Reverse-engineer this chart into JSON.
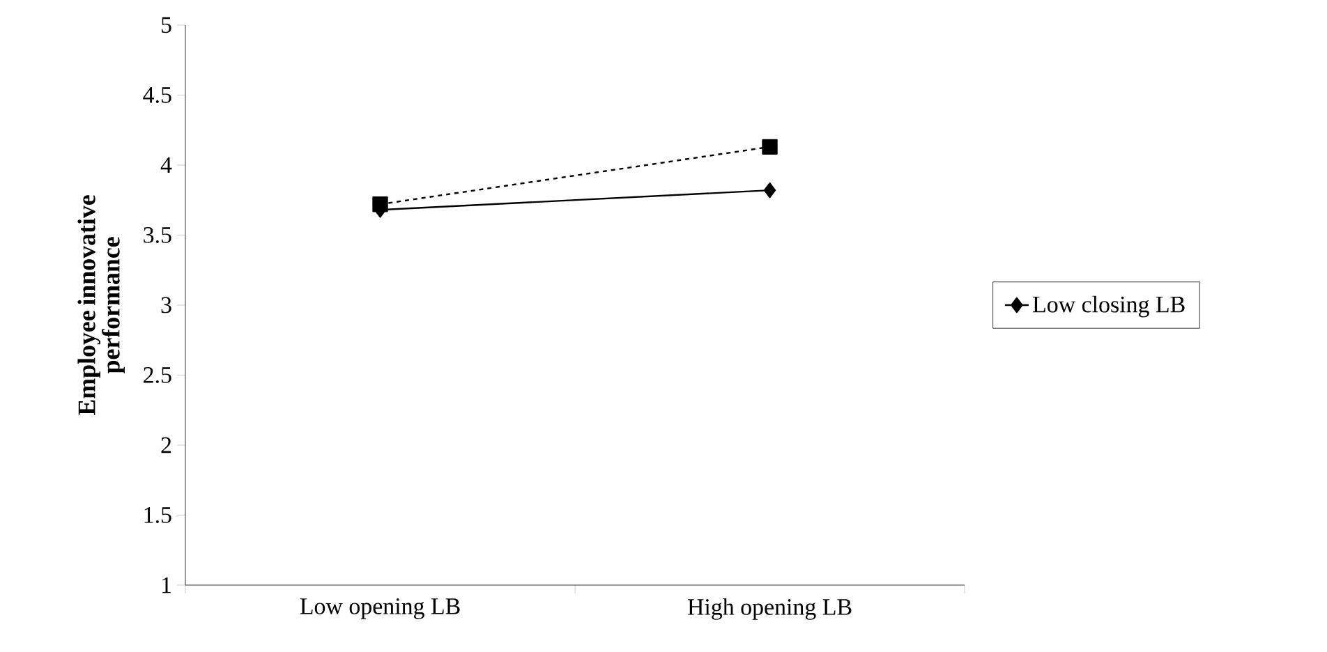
{
  "chart_data": {
    "type": "line",
    "ylabel": "Employee innovative performance",
    "categories": [
      "Low opening LB",
      "High opening LB"
    ],
    "series": [
      {
        "name": "Low closing LB",
        "color": "#000000",
        "values": [
          3.68,
          3.82
        ],
        "marker": "diamond",
        "line_style": "solid"
      },
      {
        "color": "#000000",
        "values": [
          3.72,
          4.13
        ],
        "marker": "square",
        "line_style": "dashed"
      }
    ],
    "ylim": [
      1,
      5
    ],
    "yticks": [
      1,
      1.5,
      2,
      2.5,
      3,
      3.5,
      4,
      4.5,
      5
    ],
    "grid": false,
    "legend": "right"
  }
}
